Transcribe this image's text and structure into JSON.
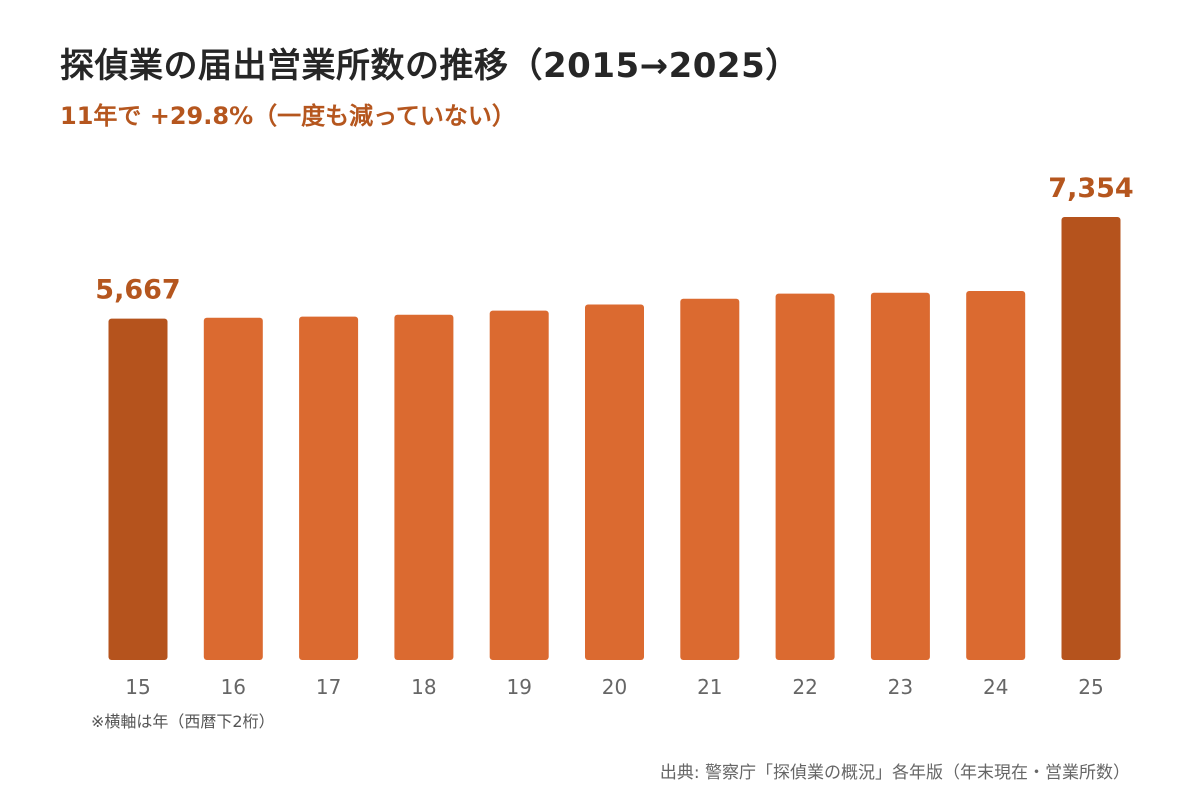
{
  "header": {
    "title": "探偵業の届出営業所数の推移（2015→2025）",
    "subtitle": "11年で +29.8%（一度も減っていない）"
  },
  "chart_data": {
    "type": "bar",
    "categories": [
      "15",
      "16",
      "17",
      "18",
      "19",
      "20",
      "21",
      "22",
      "23",
      "24",
      "25"
    ],
    "values": [
      5667,
      5681,
      5700,
      5732,
      5800,
      5902,
      5996,
      6082,
      6096,
      6126,
      7354
    ],
    "labeled_points": [
      {
        "index": 0,
        "label": "5,667"
      },
      {
        "index": 10,
        "label": "7,354"
      }
    ],
    "ylim": [
      0,
      7354
    ],
    "grid": false,
    "legend": "none",
    "colors": {
      "bar": "#db6a30",
      "highlight": "#b5531d",
      "label": "#b5561e",
      "tick": "#666666"
    }
  },
  "footer": {
    "note": "※横軸は年（西暦下2桁）",
    "source": "出典: 警察庁「探偵業の概況」各年版（年末現在・営業所数）"
  }
}
